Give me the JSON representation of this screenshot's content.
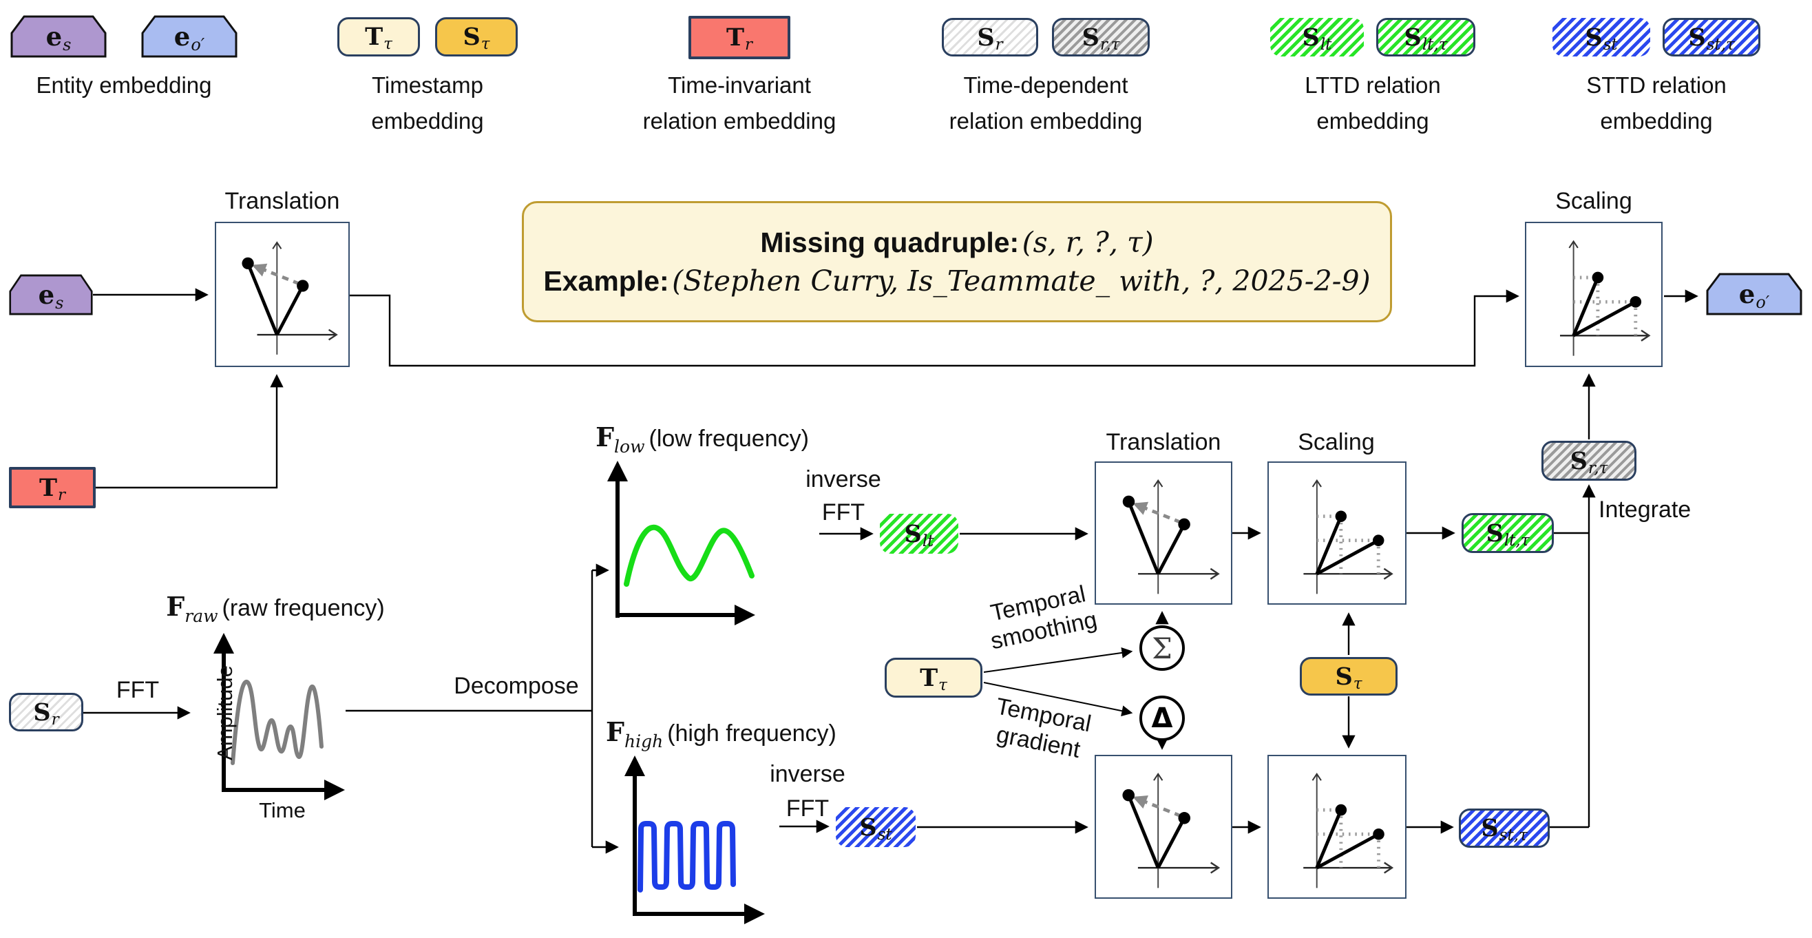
{
  "legend": {
    "groups": [
      {
        "label_lines": [
          "Entity embedding"
        ],
        "items": [
          {
            "sym": "e",
            "sub": "s"
          },
          {
            "sym": "e",
            "sub": "o′"
          }
        ]
      },
      {
        "label_lines": [
          "Timestamp",
          "embedding"
        ],
        "items": [
          {
            "sym": "T",
            "sub": "τ"
          },
          {
            "sym": "S",
            "sub": "τ"
          }
        ]
      },
      {
        "label_lines": [
          "Time-invariant",
          "relation embedding"
        ],
        "items": [
          {
            "sym": "T",
            "sub": "r"
          }
        ]
      },
      {
        "label_lines": [
          "Time-dependent",
          "relation embedding"
        ],
        "items": [
          {
            "sym": "S",
            "sub": "r"
          },
          {
            "sym": "S",
            "sub": "r,τ"
          }
        ]
      },
      {
        "label_lines": [
          "LTTD relation",
          "embedding"
        ],
        "items": [
          {
            "sym": "S",
            "sub": "lt"
          },
          {
            "sym": "S",
            "sub": "lt,τ"
          }
        ]
      },
      {
        "label_lines": [
          "STTD relation",
          "embedding"
        ],
        "items": [
          {
            "sym": "S",
            "sub": "st"
          },
          {
            "sym": "S",
            "sub": "st,τ"
          }
        ]
      }
    ]
  },
  "quadruple_box": {
    "line1_prefix": "Missing quadruple:",
    "line1_math": "(s, r, ?, τ)",
    "line2_prefix": "Example:",
    "line2_math": "(Stephen Curry, Is_Teammate_ with, ?, 2025-2-9)"
  },
  "nodes": {
    "es": {
      "sym": "e",
      "sub": "s"
    },
    "eo": {
      "sym": "e",
      "sub": "o′"
    },
    "Tr": {
      "sym": "T",
      "sub": "r"
    },
    "Sr": {
      "sym": "S",
      "sub": "r"
    },
    "Slt": {
      "sym": "S",
      "sub": "lt"
    },
    "Sst": {
      "sym": "S",
      "sub": "st"
    },
    "Sltt": {
      "sym": "S",
      "sub": "lt,τ"
    },
    "Sstt": {
      "sym": "S",
      "sub": "st,τ"
    },
    "Srt": {
      "sym": "S",
      "sub": "r,τ"
    },
    "Ttau": {
      "sym": "T",
      "sub": "τ"
    },
    "Stau": {
      "sym": "S",
      "sub": "τ"
    }
  },
  "labels": {
    "translation": "Translation",
    "scaling": "Scaling",
    "integrate": "Integrate",
    "decompose": "Decompose",
    "fft": "FFT",
    "inverse": "inverse",
    "temporal_smoothing_1": "Temporal",
    "temporal_smoothing_2": "smoothing",
    "temporal_gradient_1": "Temporal",
    "temporal_gradient_2": "gradient",
    "sigma": "Σ",
    "delta": "Δ"
  },
  "plots": {
    "raw": {
      "sym": "F",
      "sub": "raw",
      "caption": "(raw frequency)",
      "xlabel": "Time",
      "ylabel": "Amplitude",
      "curve_color": "#7f7f7f"
    },
    "low": {
      "sym": "F",
      "sub": "low",
      "caption": "(low frequency)",
      "curve_color": "#17dd17"
    },
    "high": {
      "sym": "F",
      "sub": "high",
      "caption": "(high frequency)",
      "curve_color": "#1c3de8"
    }
  },
  "colors": {
    "entity_purple": "#ae97cf",
    "entity_blue": "#a9bcf1",
    "timestamp_cream": "#fdf3d4",
    "timestamp_gold": "#f6c64b",
    "relation_red": "#f9776e",
    "navy_border": "#2a3f5f",
    "callout_bg": "#fcf5da",
    "callout_border": "#bf9c31",
    "lttd_green": "#27e427",
    "sttd_blue": "#2b48ee",
    "raw_gray": "#7f7f7f"
  }
}
